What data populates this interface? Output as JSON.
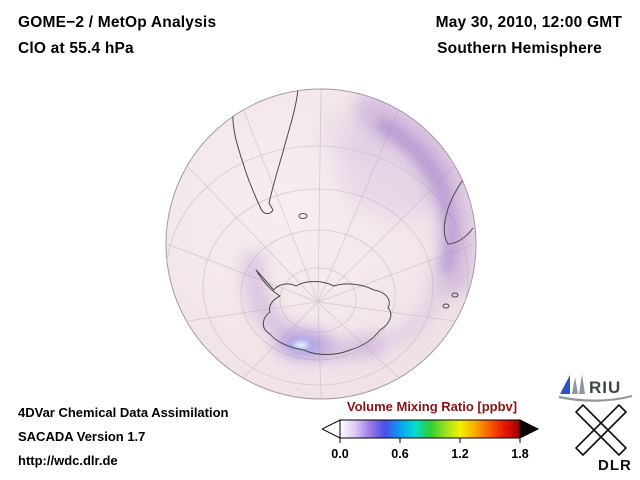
{
  "header": {
    "left": {
      "line1": "GOME−2 / MetOp Analysis",
      "line2": "ClO at 55.4 hPa"
    },
    "right": {
      "line1": "May 30, 2010, 12:00 GMT",
      "line2": "Southern Hemisphere"
    }
  },
  "footer": {
    "line1": "4DVar Chemical Data Assimilation",
    "line2": "SACADA Version 1.7",
    "line3": "http://wdc.dlr.de"
  },
  "colorbar": {
    "title": "Volume Mixing Ratio [ppbv]",
    "title_color": "#8b1111",
    "ticks": [
      "0.0",
      "0.6",
      "1.2",
      "1.8"
    ],
    "range": [
      0.0,
      1.8
    ],
    "gradient": [
      "#ffffff",
      "#dccbf2",
      "#9a7ae8",
      "#4b4ee8",
      "#089ef0",
      "#06ddd0",
      "#2ecc38",
      "#97e01e",
      "#f2f200",
      "#f8ac00",
      "#f85a00",
      "#e61600",
      "#9c0000"
    ]
  },
  "logos": {
    "riu_label": "RIU",
    "dlr_label": "DLR"
  },
  "chart_data": {
    "type": "heatmap",
    "title": "GOME−2 / MetOp Analysis — ClO at 55.4 hPa",
    "region": "Southern Hemisphere",
    "timestamp": "May 30, 2010, 12:00 GMT",
    "colorbar_label": "Volume Mixing Ratio [ppbv]",
    "colorbar_ticks": [
      0.0,
      0.6,
      1.2,
      1.8
    ],
    "colorbar_range": [
      0.0,
      1.8
    ]
  }
}
